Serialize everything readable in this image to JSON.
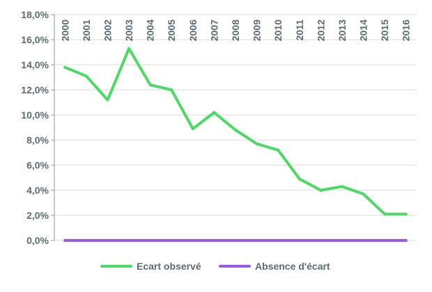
{
  "chart_data": {
    "type": "line",
    "title": "",
    "xlabel": "",
    "ylabel": "",
    "x": [
      "2000",
      "2001",
      "2002",
      "2003",
      "2004",
      "2005",
      "2006",
      "2007",
      "2008",
      "2009",
      "2010",
      "2011",
      "2012",
      "2013",
      "2014",
      "2015",
      "2016"
    ],
    "ylim": [
      0,
      18
    ],
    "yticks": [
      "0,0%",
      "2,0%",
      "4,0%",
      "6,0%",
      "8,0%",
      "10,0%",
      "12,0%",
      "14,0%",
      "16,0%",
      "18,0%"
    ],
    "grid": true,
    "legend_position": "bottom",
    "series": [
      {
        "name": "Ecart observé",
        "color": "#4cd964",
        "values": [
          13.8,
          13.1,
          11.2,
          15.3,
          12.4,
          12.0,
          8.9,
          10.2,
          8.8,
          7.7,
          7.2,
          4.9,
          4.0,
          4.3,
          3.7,
          2.1,
          2.1
        ]
      },
      {
        "name": "Absence d'écart",
        "color": "#9b59e8",
        "values": [
          0,
          0,
          0,
          0,
          0,
          0,
          0,
          0,
          0,
          0,
          0,
          0,
          0,
          0,
          0,
          0,
          0
        ]
      }
    ]
  }
}
